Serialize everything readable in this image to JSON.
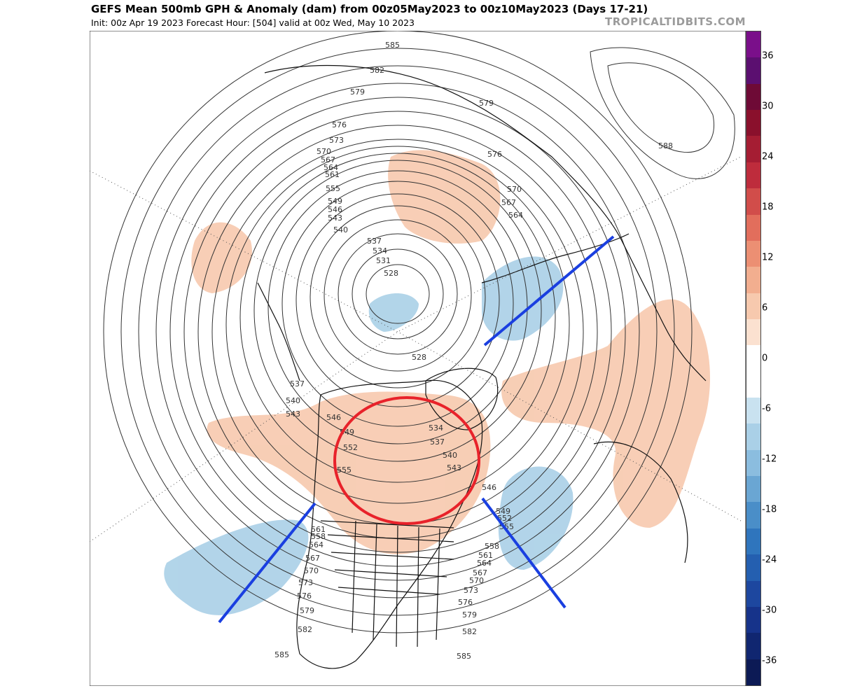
{
  "header": {
    "title": "GEFS Mean 500mb GPH & Anomaly (dam) from 00z05May2023 to 00z10May2023 (Days 17-21)",
    "subtitle": "Init: 00z Apr 19 2023   Forecast Hour: [504]   valid at 00z Wed, May 10 2023",
    "brand": "TROPICALTIDBITS.COM"
  },
  "colorbar": {
    "segments": [
      "#0c1a55",
      "#102670",
      "#16338a",
      "#1d479f",
      "#245fb0",
      "#2f75bd",
      "#4a8ec8",
      "#6aa6d3",
      "#8bbddf",
      "#aad0e7",
      "#c9e2f0",
      "#ffffff",
      "#ffffff",
      "#fbe1d0",
      "#f7c9ae",
      "#f2ae8f",
      "#ec8f73",
      "#e26e5c",
      "#d14d4a",
      "#be2c3c",
      "#a51d33",
      "#8a102c",
      "#6e0a36",
      "#5b0f70",
      "#7a0f8a"
    ],
    "ticks": [
      {
        "label": "36",
        "value": 36
      },
      {
        "label": "30",
        "value": 30
      },
      {
        "label": "24",
        "value": 24
      },
      {
        "label": "18",
        "value": 18
      },
      {
        "label": "12",
        "value": 12
      },
      {
        "label": "6",
        "value": 6
      },
      {
        "label": "0",
        "value": 0
      },
      {
        "label": "-6",
        "value": -6
      },
      {
        "label": "-12",
        "value": -12
      },
      {
        "label": "-18",
        "value": -18
      },
      {
        "label": "-24",
        "value": -24
      },
      {
        "label": "-30",
        "value": -30
      },
      {
        "label": "-36",
        "value": -36
      }
    ]
  },
  "contour_labels": [
    {
      "text": "585",
      "id": "ctr-585-a"
    },
    {
      "text": "582",
      "id": "ctr-582-a"
    },
    {
      "text": "579",
      "id": "ctr-579-a"
    },
    {
      "text": "579",
      "id": "ctr-579-b"
    },
    {
      "text": "576",
      "id": "ctr-576-a"
    },
    {
      "text": "576",
      "id": "ctr-576-b"
    },
    {
      "text": "573",
      "id": "ctr-573-a"
    },
    {
      "text": "570",
      "id": "ctr-570-a"
    },
    {
      "text": "570",
      "id": "ctr-570-b"
    },
    {
      "text": "567",
      "id": "ctr-567-a"
    },
    {
      "text": "567",
      "id": "ctr-567-b"
    },
    {
      "text": "564",
      "id": "ctr-564-a"
    },
    {
      "text": "564",
      "id": "ctr-564-b"
    },
    {
      "text": "561",
      "id": "ctr-561-a"
    },
    {
      "text": "555",
      "id": "ctr-555-a"
    },
    {
      "text": "549",
      "id": "ctr-549-a"
    },
    {
      "text": "546",
      "id": "ctr-546-a"
    },
    {
      "text": "543",
      "id": "ctr-543-a"
    },
    {
      "text": "540",
      "id": "ctr-540-a"
    },
    {
      "text": "537",
      "id": "ctr-537-a"
    },
    {
      "text": "534",
      "id": "ctr-534-a"
    },
    {
      "text": "531",
      "id": "ctr-531-a"
    },
    {
      "text": "528",
      "id": "ctr-528-a"
    },
    {
      "text": "528",
      "id": "ctr-528-b"
    },
    {
      "text": "588",
      "id": "ctr-588-a"
    },
    {
      "text": "537",
      "id": "ctr-537-b"
    },
    {
      "text": "540",
      "id": "ctr-540-b"
    },
    {
      "text": "543",
      "id": "ctr-543-b"
    },
    {
      "text": "546",
      "id": "ctr-546-b"
    },
    {
      "text": "549",
      "id": "ctr-549-b"
    },
    {
      "text": "552",
      "id": "ctr-552-a"
    },
    {
      "text": "555",
      "id": "ctr-555-b"
    },
    {
      "text": "534",
      "id": "ctr-534-b"
    },
    {
      "text": "537",
      "id": "ctr-537-c"
    },
    {
      "text": "540",
      "id": "ctr-540-c"
    },
    {
      "text": "543",
      "id": "ctr-543-c"
    },
    {
      "text": "546",
      "id": "ctr-546-c"
    },
    {
      "text": "549",
      "id": "ctr-549-c"
    },
    {
      "text": "552",
      "id": "ctr-552-b"
    },
    {
      "text": "555",
      "id": "ctr-555-c"
    },
    {
      "text": "558",
      "id": "ctr-558-a"
    },
    {
      "text": "561",
      "id": "ctr-561-b"
    },
    {
      "text": "564",
      "id": "ctr-564-c"
    },
    {
      "text": "567",
      "id": "ctr-567-c"
    },
    {
      "text": "570",
      "id": "ctr-570-c"
    },
    {
      "text": "573",
      "id": "ctr-573-b"
    },
    {
      "text": "576",
      "id": "ctr-576-c"
    },
    {
      "text": "579",
      "id": "ctr-579-c"
    },
    {
      "text": "582",
      "id": "ctr-582-b"
    },
    {
      "text": "585",
      "id": "ctr-585-b"
    },
    {
      "text": "558",
      "id": "ctr-558-b"
    },
    {
      "text": "561",
      "id": "ctr-561-c"
    },
    {
      "text": "564",
      "id": "ctr-564-d"
    },
    {
      "text": "567",
      "id": "ctr-567-d"
    },
    {
      "text": "570",
      "id": "ctr-570-d"
    },
    {
      "text": "573",
      "id": "ctr-573-c"
    },
    {
      "text": "576",
      "id": "ctr-576-d"
    },
    {
      "text": "579",
      "id": "ctr-579-d"
    },
    {
      "text": "582",
      "id": "ctr-582-c"
    },
    {
      "text": "585",
      "id": "ctr-585-c"
    }
  ],
  "colors": {
    "positive_anomaly": "#f7c9ae",
    "negative_anomaly": "#aad0e7",
    "annotation_circle": "#e8222a",
    "annotation_lines": "#1a3fe0",
    "contour": "#333333"
  }
}
